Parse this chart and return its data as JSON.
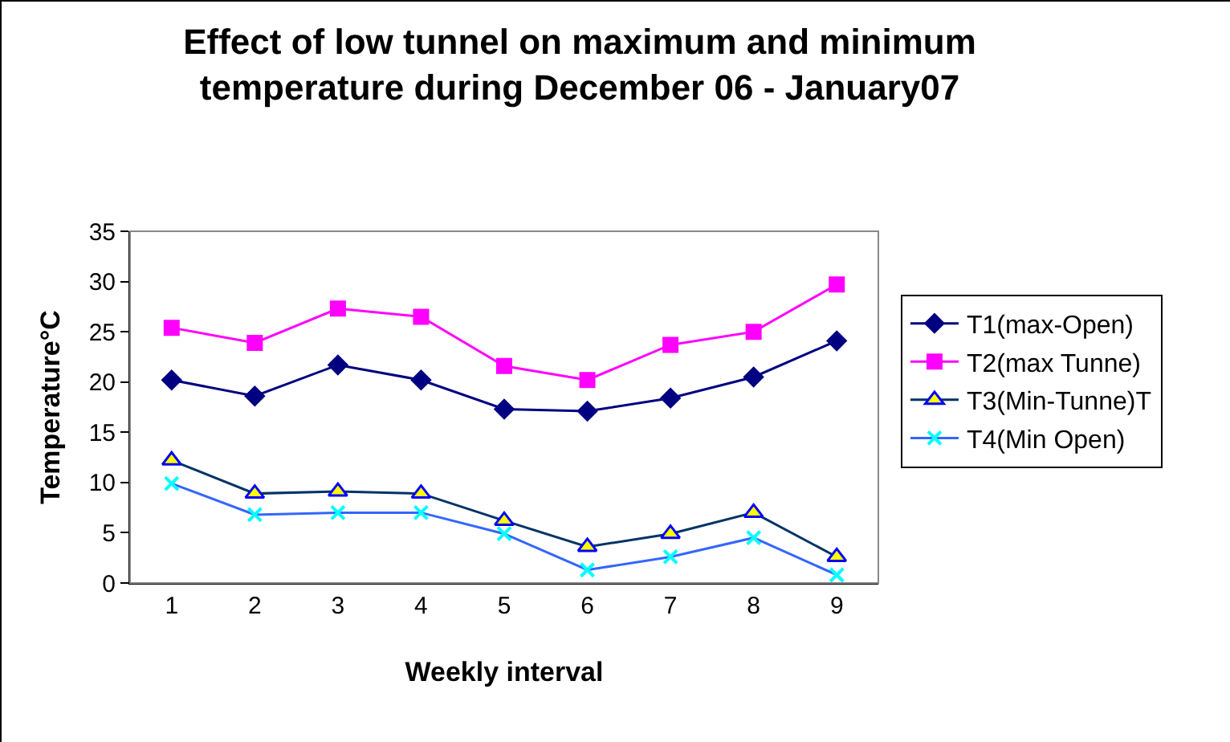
{
  "chart_data": {
    "type": "line",
    "title": "Effect of low tunnel on maximum and minimum temperature during December 06 - January07",
    "xlabel": "Weekly interval",
    "ylabel": "Temperature°C",
    "categories": [
      "1",
      "2",
      "3",
      "4",
      "5",
      "6",
      "7",
      "8",
      "9"
    ],
    "ylim": [
      0,
      35
    ],
    "yticks": [
      0,
      5,
      10,
      15,
      20,
      25,
      30,
      35
    ],
    "grid": false,
    "legend": "right",
    "series": [
      {
        "name": "T1(max-Open)",
        "color": "#000080",
        "marker": "diamond",
        "values": [
          20.2,
          18.6,
          21.7,
          20.2,
          17.3,
          17.1,
          18.4,
          20.5,
          24.1
        ]
      },
      {
        "name": "T2(max Tunne)",
        "color": "#ff00ff",
        "marker": "square",
        "values": [
          25.4,
          23.9,
          27.3,
          26.5,
          21.6,
          20.2,
          23.7,
          25.0,
          29.7
        ]
      },
      {
        "name": "T3(Min-Tunne)T",
        "color": "#003366",
        "marker": "triangle",
        "values": [
          12.2,
          8.9,
          9.1,
          8.9,
          6.2,
          3.6,
          4.9,
          7.0,
          2.6
        ]
      },
      {
        "name": "T4(Min Open)",
        "color": "#3366ff",
        "marker": "cross",
        "values": [
          9.9,
          6.8,
          7.0,
          7.0,
          4.9,
          1.3,
          2.6,
          4.5,
          0.8
        ]
      }
    ]
  }
}
